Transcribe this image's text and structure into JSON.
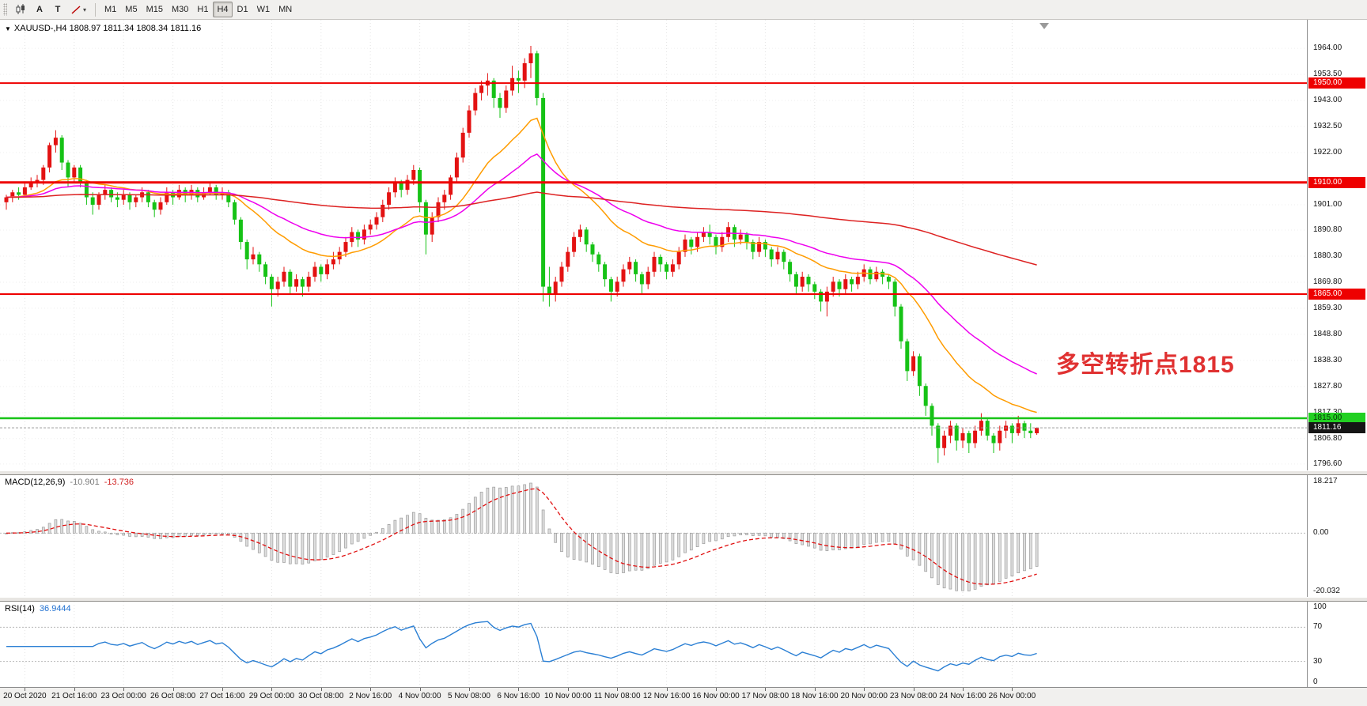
{
  "toolbar": {
    "tool_buttons": [
      {
        "name": "chart-type-candles",
        "label": ""
      },
      {
        "name": "insert-text",
        "label": "A"
      },
      {
        "name": "text-label",
        "label": "T"
      },
      {
        "name": "drawing-tools",
        "label": "",
        "has_dropdown": true
      }
    ],
    "timeframes": [
      "M1",
      "M5",
      "M15",
      "M30",
      "H1",
      "H4",
      "D1",
      "W1",
      "MN"
    ],
    "active_timeframe": "H4"
  },
  "chart": {
    "symbol_period": "XAUUSD-,H4",
    "ohlc": "1808.97 1811.34 1808.34 1811.16"
  },
  "chart_data": {
    "type": "candlestick",
    "symbol": "XAUUSD-",
    "timeframe": "H4",
    "bull_color": "#e31212",
    "bear_color": "#16c216",
    "price_range": [
      1794.0,
      1975.5
    ],
    "annotation": {
      "text": "多空转折点1815",
      "color": "#e03131"
    },
    "hlines": [
      {
        "price": 1950.0,
        "color": "#ee0000",
        "width": 2,
        "badge": "1950.00",
        "badge_bg": "#ee0000",
        "badge_fg": "#ffffff"
      },
      {
        "price": 1910.0,
        "color": "#ee0000",
        "width": 3,
        "badge": "1910.00",
        "badge_bg": "#ee0000",
        "badge_fg": "#ffffff"
      },
      {
        "price": 1865.0,
        "color": "#ee0000",
        "width": 2,
        "badge": "1865.00",
        "badge_bg": "#ee0000",
        "badge_fg": "#ffffff"
      },
      {
        "price": 1815.0,
        "color": "#18c418",
        "width": 2.5,
        "badge": "1815.00",
        "badge_bg": "#22d022",
        "badge_fg": "#063306"
      }
    ],
    "current_price": {
      "value": 1811.16,
      "label": "1811.16",
      "line_color": "#9a9a9a",
      "badge_bg": "#151515",
      "badge_fg": "#ffffff"
    },
    "price_axis_ticks": [
      {
        "label": "1964.00",
        "value": 1964.0
      },
      {
        "label": "1953.50",
        "value": 1953.5
      },
      {
        "label": "1943.00",
        "value": 1943.0
      },
      {
        "label": "1932.50",
        "value": 1932.5
      },
      {
        "label": "1922.00",
        "value": 1922.0
      },
      {
        "label": "1901.00",
        "value": 1901.0
      },
      {
        "label": "1890.80",
        "value": 1890.8
      },
      {
        "label": "1880.30",
        "value": 1880.3
      },
      {
        "label": "1869.80",
        "value": 1869.8
      },
      {
        "label": "1859.30",
        "value": 1859.3
      },
      {
        "label": "1848.80",
        "value": 1848.8
      },
      {
        "label": "1838.30",
        "value": 1838.3
      },
      {
        "label": "1827.80",
        "value": 1827.8
      },
      {
        "label": "1817.30",
        "value": 1817.3
      },
      {
        "label": "1806.80",
        "value": 1806.8
      },
      {
        "label": "1796.60",
        "value": 1796.6
      }
    ],
    "time_labels": [
      "20 Oct 2020",
      "21 Oct 16:00",
      "23 Oct 00:00",
      "26 Oct 08:00",
      "27 Oct 16:00",
      "29 Oct 00:00",
      "30 Oct 08:00",
      "2 Nov 16:00",
      "4 Nov 00:00",
      "5 Nov 08:00",
      "6 Nov 16:00",
      "10 Nov 00:00",
      "11 Nov 08:00",
      "12 Nov 16:00",
      "16 Nov 00:00",
      "17 Nov 08:00",
      "18 Nov 16:00",
      "20 Nov 00:00",
      "23 Nov 08:00",
      "24 Nov 16:00",
      "26 Nov 00:00"
    ],
    "moving_averages": [
      {
        "name": "fast-ma",
        "period": 20,
        "color": "#ff9c00"
      },
      {
        "name": "medium-ma",
        "period": 40,
        "color": "#ee00ee"
      },
      {
        "name": "slow-ma",
        "period": 200,
        "color": "#dd2222"
      }
    ],
    "indicators": {
      "macd": {
        "label": "MACD(12,26,9)",
        "value": "-10.901",
        "signal_value": "-13.736",
        "params": [
          12,
          26,
          9
        ],
        "axis": [
          {
            "label": "18.217",
            "value": 18.217
          },
          {
            "label": "0.00",
            "value": 0
          },
          {
            "label": "-20.032",
            "value": -20.032
          }
        ],
        "range": [
          -20.032,
          18.217
        ],
        "histogram_color": "#9b9b9b",
        "signal_color": "#e01010"
      },
      "rsi": {
        "label": "RSI(14)",
        "value": "36.9444",
        "period": 14,
        "axis": [
          {
            "label": "100",
            "value": 100
          },
          {
            "label": "70",
            "value": 70
          },
          {
            "label": "30",
            "value": 30
          },
          {
            "label": "0",
            "value": 0
          }
        ],
        "levels": [
          70,
          30
        ],
        "line_color": "#2a7fd4"
      }
    },
    "candles": [
      [
        1902,
        1905,
        1899,
        1904
      ],
      [
        1904,
        1907,
        1902,
        1906
      ],
      [
        1906,
        1908,
        1903,
        1905
      ],
      [
        1905,
        1910,
        1904,
        1908
      ],
      [
        1908,
        1912,
        1907,
        1910
      ],
      [
        1910,
        1913,
        1908,
        1911
      ],
      [
        1911,
        1917,
        1909,
        1916
      ],
      [
        1916,
        1926,
        1914,
        1925
      ],
      [
        1925,
        1931,
        1922,
        1928
      ],
      [
        1928,
        1929,
        1915,
        1918
      ],
      [
        1918,
        1919,
        1908,
        1912
      ],
      [
        1912,
        1917,
        1910,
        1916
      ],
      [
        1916,
        1917,
        1908,
        1910
      ],
      [
        1910,
        1911,
        1901,
        1904
      ],
      [
        1904,
        1906,
        1897,
        1901
      ],
      [
        1901,
        1906,
        1899,
        1905
      ],
      [
        1905,
        1909,
        1903,
        1907
      ],
      [
        1907,
        1908,
        1902,
        1904
      ],
      [
        1904,
        1906,
        1900,
        1903
      ],
      [
        1903,
        1907,
        1901,
        1905
      ],
      [
        1905,
        1906,
        1899,
        1902
      ],
      [
        1902,
        1905,
        1900,
        1904
      ],
      [
        1904,
        1908,
        1902,
        1906
      ],
      [
        1906,
        1907,
        1900,
        1902
      ],
      [
        1902,
        1903,
        1896,
        1899
      ],
      [
        1899,
        1904,
        1897,
        1902
      ],
      [
        1902,
        1908,
        1901,
        1906
      ],
      [
        1906,
        1907,
        1901,
        1904
      ],
      [
        1904,
        1909,
        1903,
        1907
      ],
      [
        1907,
        1908,
        1902,
        1905
      ],
      [
        1905,
        1909,
        1903,
        1907
      ],
      [
        1907,
        1908,
        1902,
        1904
      ],
      [
        1904,
        1908,
        1903,
        1906
      ],
      [
        1906,
        1910,
        1905,
        1908
      ],
      [
        1908,
        1909,
        1903,
        1905
      ],
      [
        1905,
        1908,
        1903,
        1906
      ],
      [
        1906,
        1907,
        1900,
        1902
      ],
      [
        1902,
        1903,
        1893,
        1895
      ],
      [
        1895,
        1896,
        1883,
        1886
      ],
      [
        1886,
        1887,
        1875,
        1879
      ],
      [
        1879,
        1884,
        1877,
        1881
      ],
      [
        1881,
        1882,
        1874,
        1877
      ],
      [
        1877,
        1878,
        1869,
        1872
      ],
      [
        1872,
        1873,
        1860,
        1867
      ],
      [
        1867,
        1872,
        1864,
        1870
      ],
      [
        1870,
        1876,
        1868,
        1874
      ],
      [
        1874,
        1875,
        1865,
        1868
      ],
      [
        1868,
        1873,
        1866,
        1871
      ],
      [
        1871,
        1872,
        1864,
        1868
      ],
      [
        1868,
        1874,
        1866,
        1872
      ],
      [
        1872,
        1878,
        1870,
        1876
      ],
      [
        1876,
        1877,
        1870,
        1873
      ],
      [
        1873,
        1879,
        1871,
        1877
      ],
      [
        1877,
        1882,
        1875,
        1879
      ],
      [
        1879,
        1884,
        1877,
        1882
      ],
      [
        1882,
        1888,
        1880,
        1886
      ],
      [
        1886,
        1892,
        1884,
        1890
      ],
      [
        1890,
        1891,
        1884,
        1887
      ],
      [
        1887,
        1893,
        1885,
        1891
      ],
      [
        1891,
        1895,
        1889,
        1893
      ],
      [
        1893,
        1898,
        1891,
        1896
      ],
      [
        1896,
        1903,
        1894,
        1901
      ],
      [
        1901,
        1908,
        1899,
        1906
      ],
      [
        1906,
        1912,
        1904,
        1910
      ],
      [
        1910,
        1911,
        1904,
        1907
      ],
      [
        1907,
        1913,
        1905,
        1911
      ],
      [
        1911,
        1917,
        1909,
        1915
      ],
      [
        1915,
        1916,
        1898,
        1902
      ],
      [
        1902,
        1903,
        1881,
        1889
      ],
      [
        1889,
        1898,
        1886,
        1896
      ],
      [
        1896,
        1904,
        1894,
        1902
      ],
      [
        1902,
        1907,
        1899,
        1905
      ],
      [
        1905,
        1913,
        1903,
        1912
      ],
      [
        1912,
        1922,
        1910,
        1920
      ],
      [
        1920,
        1932,
        1918,
        1930
      ],
      [
        1930,
        1941,
        1928,
        1939
      ],
      [
        1939,
        1948,
        1937,
        1946
      ],
      [
        1946,
        1951,
        1943,
        1949
      ],
      [
        1949,
        1954,
        1945,
        1951
      ],
      [
        1951,
        1952,
        1940,
        1944
      ],
      [
        1944,
        1946,
        1936,
        1940
      ],
      [
        1940,
        1949,
        1938,
        1947
      ],
      [
        1947,
        1957,
        1945,
        1952
      ],
      [
        1952,
        1955,
        1946,
        1951
      ],
      [
        1951,
        1960,
        1948,
        1958
      ],
      [
        1958,
        1965,
        1952,
        1962
      ],
      [
        1962,
        1963,
        1941,
        1944
      ],
      [
        1944,
        1946,
        1862,
        1868
      ],
      [
        1868,
        1876,
        1860,
        1865
      ],
      [
        1865,
        1872,
        1862,
        1870
      ],
      [
        1870,
        1878,
        1868,
        1876
      ],
      [
        1876,
        1884,
        1874,
        1882
      ],
      [
        1882,
        1890,
        1880,
        1888
      ],
      [
        1888,
        1893,
        1886,
        1891
      ],
      [
        1891,
        1892,
        1882,
        1885
      ],
      [
        1885,
        1886,
        1878,
        1881
      ],
      [
        1881,
        1882,
        1874,
        1877
      ],
      [
        1877,
        1878,
        1868,
        1871
      ],
      [
        1871,
        1872,
        1862,
        1866
      ],
      [
        1866,
        1872,
        1864,
        1870
      ],
      [
        1870,
        1877,
        1868,
        1875
      ],
      [
        1875,
        1880,
        1873,
        1878
      ],
      [
        1878,
        1879,
        1870,
        1873
      ],
      [
        1873,
        1874,
        1865,
        1869
      ],
      [
        1869,
        1876,
        1867,
        1874
      ],
      [
        1874,
        1882,
        1872,
        1880
      ],
      [
        1880,
        1881,
        1874,
        1877
      ],
      [
        1877,
        1878,
        1871,
        1874
      ],
      [
        1874,
        1879,
        1872,
        1877
      ],
      [
        1877,
        1884,
        1875,
        1882
      ],
      [
        1882,
        1889,
        1880,
        1887
      ],
      [
        1887,
        1888,
        1881,
        1884
      ],
      [
        1884,
        1890,
        1882,
        1888
      ],
      [
        1888,
        1892,
        1886,
        1890
      ],
      [
        1890,
        1893,
        1885,
        1888
      ],
      [
        1888,
        1889,
        1881,
        1884
      ],
      [
        1884,
        1890,
        1882,
        1888
      ],
      [
        1888,
        1894,
        1886,
        1892
      ],
      [
        1892,
        1893,
        1884,
        1887
      ],
      [
        1887,
        1891,
        1885,
        1889
      ],
      [
        1889,
        1890,
        1883,
        1886
      ],
      [
        1886,
        1887,
        1879,
        1882
      ],
      [
        1882,
        1888,
        1880,
        1886
      ],
      [
        1886,
        1887,
        1880,
        1883
      ],
      [
        1883,
        1884,
        1876,
        1879
      ],
      [
        1879,
        1884,
        1877,
        1882
      ],
      [
        1882,
        1883,
        1875,
        1878
      ],
      [
        1878,
        1879,
        1870,
        1873
      ],
      [
        1873,
        1874,
        1865,
        1868
      ],
      [
        1868,
        1874,
        1866,
        1872
      ],
      [
        1872,
        1873,
        1866,
        1869
      ],
      [
        1869,
        1870,
        1863,
        1866
      ],
      [
        1866,
        1867,
        1858,
        1862
      ],
      [
        1862,
        1868,
        1856,
        1866
      ],
      [
        1866,
        1872,
        1864,
        1870
      ],
      [
        1870,
        1871,
        1864,
        1867
      ],
      [
        1867,
        1873,
        1865,
        1871
      ],
      [
        1871,
        1872,
        1866,
        1869
      ],
      [
        1869,
        1874,
        1867,
        1872
      ],
      [
        1872,
        1877,
        1870,
        1875
      ],
      [
        1875,
        1876,
        1869,
        1871
      ],
      [
        1871,
        1876,
        1870,
        1874
      ],
      [
        1874,
        1875,
        1869,
        1872
      ],
      [
        1872,
        1873,
        1867,
        1870
      ],
      [
        1870,
        1871,
        1856,
        1860
      ],
      [
        1860,
        1861,
        1843,
        1846
      ],
      [
        1846,
        1847,
        1830,
        1834
      ],
      [
        1834,
        1842,
        1832,
        1840
      ],
      [
        1840,
        1841,
        1824,
        1828
      ],
      [
        1828,
        1829,
        1816,
        1820
      ],
      [
        1820,
        1821,
        1808,
        1812
      ],
      [
        1812,
        1813,
        1797,
        1803
      ],
      [
        1803,
        1810,
        1800,
        1808
      ],
      [
        1808,
        1814,
        1805,
        1812
      ],
      [
        1812,
        1813,
        1802,
        1806
      ],
      [
        1806,
        1811,
        1803,
        1809
      ],
      [
        1809,
        1810,
        1801,
        1805
      ],
      [
        1805,
        1812,
        1803,
        1810
      ],
      [
        1810,
        1817,
        1808,
        1814
      ],
      [
        1814,
        1815,
        1806,
        1808
      ],
      [
        1808,
        1809,
        1801,
        1805
      ],
      [
        1805,
        1812,
        1802,
        1810
      ],
      [
        1810,
        1814,
        1807,
        1812
      ],
      [
        1812,
        1813,
        1805,
        1809
      ],
      [
        1809,
        1816,
        1808,
        1813
      ],
      [
        1813,
        1814,
        1807,
        1810
      ],
      [
        1810,
        1813,
        1807,
        1808.97
      ],
      [
        1808.97,
        1811.34,
        1808.34,
        1811.16
      ]
    ]
  }
}
